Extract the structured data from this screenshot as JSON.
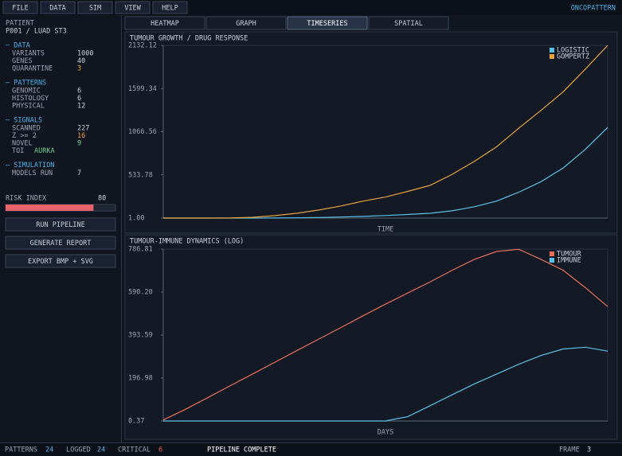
{
  "menu": [
    "FILE",
    "DATA",
    "SIM",
    "VIEW",
    "HELP"
  ],
  "brand": "ONCOPATTERN",
  "sidebar": {
    "patient_label": "PATIENT",
    "patient": "P001 / LUAD ST3",
    "sections": [
      {
        "title": "– DATA",
        "rows": [
          {
            "label": "VARIANTS",
            "value": 1000
          },
          {
            "label": "GENES",
            "value": 40
          },
          {
            "label": "QUARANTINE",
            "value": 3,
            "color": "#e8a33c"
          }
        ]
      },
      {
        "title": "– PATTERNS",
        "rows": [
          {
            "label": "GENOMIC",
            "value": 6
          },
          {
            "label": "HISTOLOGY",
            "value": 6
          },
          {
            "label": "PHYSICAL",
            "value": 12
          }
        ]
      },
      {
        "title": "– SIGNALS",
        "rows": [
          {
            "label": "SCANNED",
            "value": 227
          },
          {
            "label": "Z >= 2",
            "value": 16,
            "color": "#e8a33c"
          },
          {
            "label": "NOVEL",
            "value": 9,
            "color": "#6fd08c"
          },
          {
            "label": "TOI",
            "value": "AURKA",
            "color": "#6fd08c"
          }
        ]
      },
      {
        "title": "– SIMULATION",
        "rows": [
          {
            "label": "MODELS RUN",
            "value": 7
          }
        ]
      }
    ],
    "risk": {
      "label": "RISK INDEX",
      "value": 80,
      "lim": [
        0,
        100
      ],
      "color": "#e8646a"
    },
    "buttons": [
      "RUN PIPELINE",
      "GENERATE REPORT",
      "EXPORT BMP + SVG"
    ]
  },
  "tabs": [
    "HEATMAP",
    "GRAPH",
    "TIMESERIES",
    "SPATIAL"
  ],
  "active_tab": 2,
  "charts": [
    {
      "type": "line",
      "title": "TUMOUR GROWTH / DRUG RESPONSE",
      "xlabel": "TIME",
      "legend": "upper right",
      "ylim": [
        1,
        2132.12
      ],
      "yticks": [
        {
          "value": 1,
          "label": "1.00"
        },
        533.78,
        1066.56,
        1599.34,
        2132.12
      ],
      "series": [
        {
          "name": "LOGISTIC",
          "color": "#5bc0e8",
          "values": [
            1,
            1,
            1,
            1,
            1,
            2,
            4,
            8,
            14,
            22,
            32,
            45,
            60,
            90,
            140,
            210,
            320,
            450,
            620,
            850,
            1120
          ]
        },
        {
          "name": "GOMPERTZ",
          "color": "#e8a33c",
          "values": [
            1,
            1,
            1,
            2,
            10,
            30,
            60,
            100,
            150,
            210,
            260,
            330,
            404,
            540,
            700,
            880,
            1110,
            1330,
            1560,
            1840,
            2132.12
          ]
        }
      ]
    },
    {
      "type": "line",
      "title": "TUMOUR-IMMUNE DYNAMICS (LOG)",
      "xlabel": "DAYS",
      "legend": "upper right",
      "ylim": [
        0.37,
        786.81
      ],
      "yticks": [
        0.37,
        196.98,
        393.59,
        {
          "value": 590.2,
          "label": "590.20"
        },
        786.81
      ],
      "series": [
        {
          "name": "TUMOUR",
          "color": "#e8705a",
          "values": [
            5,
            54,
            107,
            161,
            214,
            268,
            322,
            375,
            428,
            482,
            535,
            586,
            636,
            690,
            740,
            776,
            786,
            740,
            690,
            610,
            524
          ]
        },
        {
          "name": "IMMUNE",
          "color": "#5bc0e8",
          "values": [
            0.37,
            0.37,
            0.37,
            0.37,
            0.37,
            0.37,
            0.37,
            0.37,
            0.37,
            0.37,
            0.37,
            20,
            70,
            120,
            170,
            215,
            260,
            300,
            330,
            338,
            320
          ]
        }
      ]
    }
  ],
  "status": {
    "items": [
      {
        "label": "PATTERNS",
        "value": 24,
        "color": "#4fb3e8"
      },
      {
        "label": "LOGGED",
        "value": 24,
        "color": "#4fb3e8"
      },
      {
        "label": "CRITICAL",
        "value": 6,
        "color": "#e85a5a"
      }
    ],
    "message": "PIPELINE COMPLETE",
    "frame": {
      "label": "FRAME",
      "value": 3
    }
  }
}
